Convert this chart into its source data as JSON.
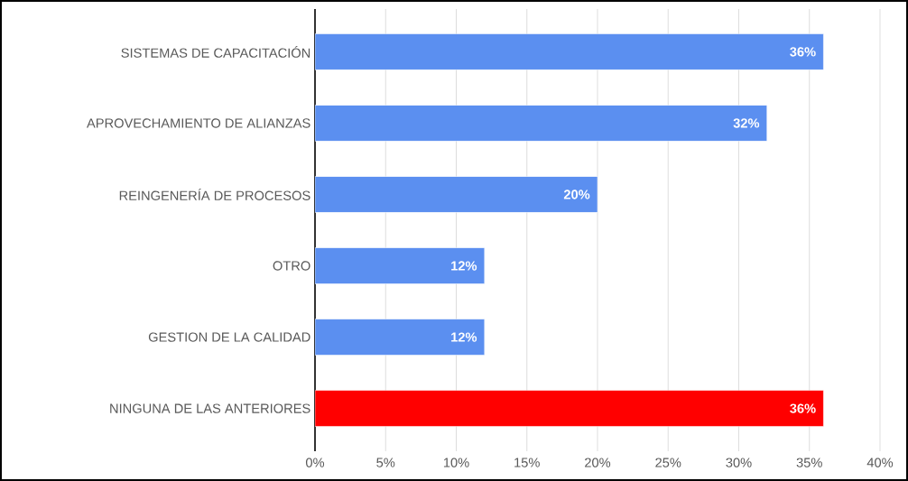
{
  "chart_data": {
    "type": "bar",
    "orientation": "horizontal",
    "categories": [
      "SISTEMAS DE CAPACITACIÓN",
      "APROVECHAMIENTO DE ALIANZAS",
      "REINGENERÍA DE PROCESOS",
      "OTRO",
      "GESTION DE  LA CALIDAD",
      "NINGUNA DE LAS ANTERIORES"
    ],
    "values": [
      36,
      32,
      20,
      12,
      12,
      36
    ],
    "value_labels": [
      "36%",
      "32%",
      "20%",
      "12%",
      "12%",
      "36%"
    ],
    "colors": [
      "#5b8ff0",
      "#5b8ff0",
      "#5b8ff0",
      "#5b8ff0",
      "#5b8ff0",
      "#ff0000"
    ],
    "xlim": [
      0,
      40
    ],
    "xticks": [
      {
        "value": 0,
        "label": "0%"
      },
      {
        "value": 5,
        "label": "5%"
      },
      {
        "value": 10,
        "label": "10%"
      },
      {
        "value": 15,
        "label": "15%"
      },
      {
        "value": 20,
        "label": "20%"
      },
      {
        "value": 25,
        "label": "25%"
      },
      {
        "value": 30,
        "label": "30%"
      },
      {
        "value": 35,
        "label": "35%"
      },
      {
        "value": 40,
        "label": "40%"
      }
    ],
    "grid": "x"
  }
}
